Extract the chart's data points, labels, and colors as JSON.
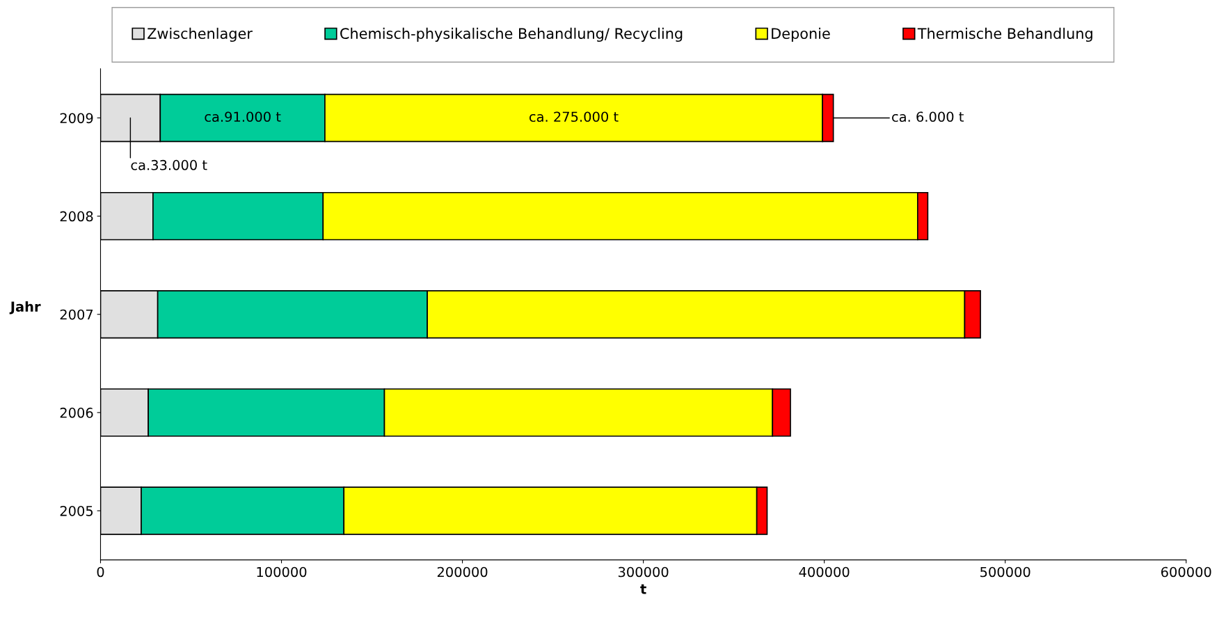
{
  "chart_data": {
    "type": "bar",
    "orientation": "horizontal",
    "stacked": true,
    "categories": [
      "2009",
      "2008",
      "2007",
      "2006",
      "2005"
    ],
    "series": [
      {
        "name": "Zwischenlager",
        "color": "#e0e0e0",
        "values": [
          33000,
          29000,
          31600,
          26400,
          22500
        ]
      },
      {
        "name": "Chemisch-physikalische Behandlung/ Recycling",
        "color": "#00cc99",
        "values": [
          91000,
          94000,
          149000,
          130500,
          112000
        ]
      },
      {
        "name": "Deponie",
        "color": "#ffff00",
        "values": [
          275000,
          328600,
          297000,
          214500,
          228200
        ]
      },
      {
        "name": "Thermische Behandlung",
        "color": "#ff0000",
        "values": [
          6000,
          5600,
          8700,
          9900,
          5700
        ]
      }
    ],
    "xlabel": "t",
    "ylabel": "Jahr",
    "xlim": [
      0,
      600000
    ],
    "xticks": [
      0,
      100000,
      200000,
      300000,
      400000,
      500000,
      600000
    ],
    "legend": "top",
    "grid": false,
    "annotations": [
      "ca.33.000 t",
      "ca.91.000 t",
      "ca. 275.000 t",
      "ca. 6.000 t"
    ]
  }
}
